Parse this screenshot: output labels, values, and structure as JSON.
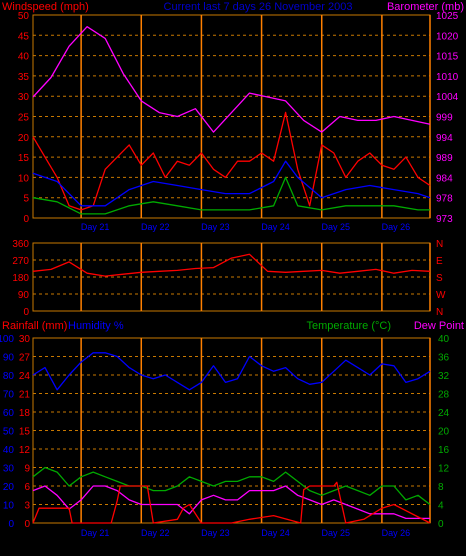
{
  "header": {
    "left_label": "Windspeed (mph)",
    "center_label": "Current last 7 days 26 November 2003",
    "right_label": "Barometer (mb)"
  },
  "panel3_header": {
    "rainfall": "Rainfall (mm)",
    "humidity": "Humidity %",
    "temperature": "Temperature (°C)",
    "dewpoint": "Dew Point"
  },
  "colors": {
    "background": "#000000",
    "gridline": "#c87800",
    "day_marker": "#ff8000",
    "windspeed": "#ff0000",
    "barometer": "#ff00ff",
    "humidity": "#0000ff",
    "temperature": "#00aa00",
    "dewpoint": "#ff00ff",
    "rainfall": "#ff0000"
  },
  "chart_data": [
    {
      "type": "line",
      "panel": "wind-barometer",
      "title": "Current last 7 days 26 November 2003",
      "xlabel": "",
      "x_ticks": [
        "Day 21",
        "Day 22",
        "Day 23",
        "Day 24",
        "Day 25",
        "Day 26"
      ],
      "y_left": {
        "label": "Windspeed (mph)",
        "ticks": [
          0,
          5,
          10,
          15,
          20,
          25,
          30,
          35,
          40,
          45,
          50
        ],
        "lim": [
          0,
          50
        ]
      },
      "y_right": {
        "label": "Barometer (mb)",
        "ticks": [
          973,
          978,
          984,
          989,
          994,
          999,
          1004,
          1010,
          1015,
          1020,
          1025
        ],
        "lim": [
          973,
          1025
        ]
      },
      "series": [
        {
          "name": "Barometer (mb)",
          "axis": "right",
          "color": "#ff00ff",
          "x": [
            0,
            0.3,
            0.6,
            0.9,
            1.2,
            1.5,
            1.8,
            2.1,
            2.4,
            2.7,
            3.0,
            3.3,
            3.6,
            3.9,
            4.2,
            4.5,
            4.8,
            5.1,
            5.4,
            5.7,
            6.0,
            6.3,
            6.6
          ],
          "y": [
            1004,
            1009,
            1017,
            1022,
            1019,
            1010,
            1003,
            1000,
            999,
            1001,
            995,
            1000,
            1005,
            1004,
            1003,
            998,
            995,
            999,
            998,
            998,
            999,
            998,
            997
          ]
        },
        {
          "name": "Windspeed gust",
          "axis": "left",
          "color": "#ff0000",
          "x": [
            0,
            0.2,
            0.4,
            0.6,
            0.8,
            1.0,
            1.2,
            1.4,
            1.6,
            1.8,
            2.0,
            2.2,
            2.4,
            2.6,
            2.8,
            3.0,
            3.2,
            3.4,
            3.6,
            3.8,
            4.0,
            4.2,
            4.4,
            4.6,
            4.8,
            5.0,
            5.2,
            5.4,
            5.6,
            5.8,
            6.0,
            6.2,
            6.4,
            6.6
          ],
          "y": [
            20,
            15,
            10,
            3,
            2,
            3,
            12,
            15,
            18,
            13,
            16,
            10,
            14,
            13,
            16,
            12,
            10,
            14,
            14,
            16,
            14,
            26,
            12,
            3,
            18,
            16,
            10,
            14,
            16,
            13,
            12,
            15,
            10,
            8
          ]
        },
        {
          "name": "Windspeed average",
          "axis": "left",
          "color": "#0000ff",
          "x": [
            0,
            0.4,
            0.8,
            1.2,
            1.6,
            2.0,
            2.4,
            2.8,
            3.2,
            3.6,
            4.0,
            4.2,
            4.4,
            4.8,
            5.2,
            5.6,
            6.0,
            6.4,
            6.6
          ],
          "y": [
            11,
            9,
            3,
            3,
            7,
            9,
            8,
            7,
            6,
            6,
            9,
            14,
            10,
            5,
            7,
            8,
            7,
            6,
            5
          ]
        },
        {
          "name": "Windspeed minimum",
          "axis": "left",
          "color": "#00aa00",
          "x": [
            0,
            0.4,
            0.8,
            1.2,
            1.6,
            2.0,
            2.4,
            2.8,
            3.2,
            3.6,
            4.0,
            4.2,
            4.4,
            4.8,
            5.2,
            5.6,
            6.0,
            6.4,
            6.6
          ],
          "y": [
            5,
            4,
            1,
            1,
            3,
            4,
            3,
            2,
            2,
            2,
            3,
            10,
            3,
            2,
            3,
            3,
            3,
            2,
            2
          ]
        }
      ]
    },
    {
      "type": "line",
      "panel": "wind-direction",
      "y_left": {
        "label": "",
        "ticks": [
          0,
          90,
          180,
          270,
          360
        ],
        "lim": [
          0,
          360
        ]
      },
      "y_right": {
        "label": "",
        "ticks": [
          "N",
          "W",
          "S",
          "E",
          "N"
        ]
      },
      "series": [
        {
          "name": "Wind direction",
          "axis": "left",
          "color": "#ff0000",
          "x": [
            0,
            0.3,
            0.6,
            0.9,
            1.2,
            1.5,
            1.8,
            2.1,
            2.4,
            2.7,
            3.0,
            3.3,
            3.6,
            3.9,
            4.2,
            4.5,
            4.8,
            5.1,
            5.4,
            5.7,
            6.0,
            6.3,
            6.6
          ],
          "y": [
            210,
            220,
            260,
            200,
            185,
            195,
            205,
            210,
            215,
            225,
            230,
            280,
            300,
            210,
            205,
            210,
            215,
            200,
            210,
            220,
            200,
            215,
            210
          ]
        }
      ]
    },
    {
      "type": "line",
      "panel": "rain-humidity-temp",
      "x_ticks": [
        "Day 21",
        "Day 22",
        "Day 23",
        "Day 24",
        "Day 25",
        "Day 26"
      ],
      "y_left_outer": {
        "label": "Rainfall (mm)",
        "ticks": [
          0,
          10,
          20,
          30,
          40,
          50,
          60,
          70,
          80,
          90,
          100
        ],
        "lim": [
          0,
          100
        ]
      },
      "y_left_inner": {
        "label": "Humidity %",
        "ticks": [
          0,
          3,
          6,
          9,
          12,
          15,
          18,
          21,
          24,
          27,
          30
        ],
        "lim": [
          0,
          30
        ]
      },
      "y_right": {
        "label": "Temperature (°C)",
        "ticks": [
          0,
          4,
          8,
          12,
          16,
          20,
          24,
          28,
          32,
          36,
          40
        ],
        "lim": [
          0,
          40
        ]
      },
      "series": [
        {
          "name": "Humidity %",
          "axis": "left_outer",
          "color": "#0000ff",
          "x": [
            0,
            0.2,
            0.4,
            0.6,
            0.8,
            1.0,
            1.2,
            1.4,
            1.6,
            1.8,
            2.0,
            2.2,
            2.4,
            2.6,
            2.8,
            3.0,
            3.2,
            3.4,
            3.6,
            3.8,
            4.0,
            4.2,
            4.4,
            4.6,
            4.8,
            5.0,
            5.2,
            5.4,
            5.6,
            5.8,
            6.0,
            6.2,
            6.4,
            6.6
          ],
          "y": [
            80,
            84,
            72,
            80,
            87,
            92,
            92,
            90,
            84,
            80,
            78,
            80,
            76,
            72,
            76,
            85,
            76,
            78,
            90,
            85,
            82,
            84,
            78,
            75,
            76,
            82,
            88,
            84,
            80,
            86,
            85,
            76,
            78,
            82
          ]
        },
        {
          "name": "Temperature (°C)",
          "axis": "right",
          "color": "#00aa00",
          "x": [
            0,
            0.2,
            0.4,
            0.6,
            0.8,
            1.0,
            1.2,
            1.4,
            1.6,
            1.8,
            2.0,
            2.2,
            2.4,
            2.6,
            2.8,
            3.0,
            3.2,
            3.4,
            3.6,
            3.8,
            4.0,
            4.2,
            4.4,
            4.6,
            4.8,
            5.0,
            5.2,
            5.4,
            5.6,
            5.8,
            6.0,
            6.2,
            6.4,
            6.6
          ],
          "y": [
            10,
            12,
            11,
            8,
            10,
            11,
            10,
            9,
            8,
            8,
            7,
            7,
            8,
            10,
            9,
            8,
            9,
            9,
            10,
            10,
            9,
            11,
            9,
            7,
            6,
            7,
            8,
            7,
            6,
            8,
            8,
            5,
            6,
            4
          ]
        },
        {
          "name": "Dew Point",
          "axis": "right",
          "color": "#ff00ff",
          "x": [
            0,
            0.2,
            0.4,
            0.6,
            0.8,
            1.0,
            1.2,
            1.4,
            1.6,
            1.8,
            2.0,
            2.2,
            2.4,
            2.6,
            2.8,
            3.0,
            3.2,
            3.4,
            3.6,
            3.8,
            4.0,
            4.2,
            4.4,
            4.6,
            4.8,
            5.0,
            5.2,
            5.4,
            5.6,
            5.8,
            6.0,
            6.2,
            6.4,
            6.6
          ],
          "y": [
            7,
            8,
            6,
            3,
            5,
            8,
            8,
            7,
            5,
            4,
            4,
            4,
            4,
            2,
            5,
            6,
            5,
            5,
            7,
            7,
            7,
            8,
            6,
            5,
            4,
            5,
            4,
            3,
            2,
            2,
            2,
            1,
            1,
            1
          ]
        },
        {
          "name": "Rainfall (mm)",
          "axis": "left_outer",
          "color": "#ff0000",
          "x": [
            0,
            0.1,
            0.6,
            0.65,
            1.3,
            1.4,
            1.45,
            1.9,
            2.0,
            2.4,
            2.5,
            2.6,
            2.8,
            3.3,
            3.6,
            4.0,
            4.45,
            4.5,
            4.6,
            5.0,
            5.05,
            5.2,
            5.5,
            5.8,
            6.0,
            6.6
          ],
          "y": [
            0,
            8,
            8,
            0,
            0,
            12,
            20,
            20,
            0,
            2,
            8,
            10,
            0,
            0,
            2,
            4,
            0,
            18,
            20,
            20,
            22,
            0,
            2,
            8,
            10,
            0
          ]
        }
      ]
    }
  ]
}
